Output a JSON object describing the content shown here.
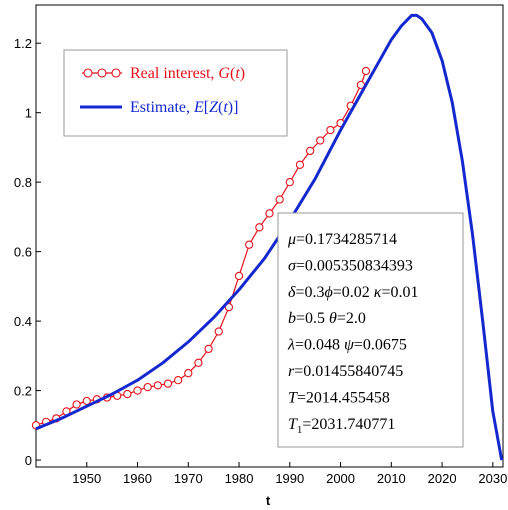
{
  "chart_data": {
    "type": "line",
    "title": "",
    "xlabel": "t",
    "ylabel": "",
    "xlim": [
      1940,
      2032
    ],
    "ylim": [
      -0.02,
      1.31
    ],
    "x_ticks": [
      1950,
      1960,
      1970,
      1980,
      1990,
      2000,
      2010,
      2020,
      2030
    ],
    "x_tick_labels": [
      "1950",
      "1960",
      "1970",
      "1980",
      "1990",
      "2000",
      "2010",
      "2020",
      "2030"
    ],
    "y_ticks": [
      0,
      0.2,
      0.4,
      0.6,
      0.8,
      1,
      1.2
    ],
    "y_tick_labels": [
      "0",
      "0.2",
      "0.4",
      "0.6",
      "0.8",
      "1",
      "1.2"
    ],
    "grid": false,
    "legend_position": "top-left",
    "series": [
      {
        "name": "Real interest, G(t)",
        "legend": {
          "prefix": "Real interest, ",
          "func": "G",
          "arg": "t"
        },
        "color": "#e8111b",
        "marker": "circle",
        "x": [
          1940,
          1942,
          1944,
          1946,
          1948,
          1950,
          1952,
          1954,
          1956,
          1958,
          1960,
          1962,
          1964,
          1966,
          1968,
          1970,
          1972,
          1974,
          1976,
          1978,
          1980,
          1982,
          1984,
          1986,
          1988,
          1990,
          1992,
          1994,
          1996,
          1998,
          2000,
          2002,
          2004,
          2005
        ],
        "y": [
          0.1,
          0.11,
          0.12,
          0.14,
          0.16,
          0.17,
          0.175,
          0.18,
          0.185,
          0.19,
          0.2,
          0.21,
          0.215,
          0.22,
          0.23,
          0.25,
          0.28,
          0.32,
          0.37,
          0.44,
          0.53,
          0.62,
          0.67,
          0.71,
          0.75,
          0.8,
          0.85,
          0.89,
          0.92,
          0.95,
          0.97,
          1.02,
          1.08,
          1.12
        ]
      },
      {
        "name": "Estimate, E[Z(t)]",
        "legend": {
          "prefix": "Estimate, ",
          "func": "E",
          "arg": "Z(t)"
        },
        "color": "#1428d0",
        "marker": "none",
        "x": [
          1940,
          1945,
          1950,
          1955,
          1960,
          1965,
          1970,
          1975,
          1980,
          1985,
          1990,
          1995,
          2000,
          2005,
          2010,
          2012,
          2014,
          2015,
          2016,
          2018,
          2020,
          2022,
          2024,
          2026,
          2028,
          2030,
          2031.74
        ],
        "y": [
          0.09,
          0.12,
          0.155,
          0.19,
          0.23,
          0.28,
          0.34,
          0.41,
          0.49,
          0.58,
          0.69,
          0.81,
          0.95,
          1.08,
          1.21,
          1.25,
          1.28,
          1.28,
          1.27,
          1.23,
          1.15,
          1.03,
          0.86,
          0.65,
          0.4,
          0.14,
          0.0
        ]
      }
    ],
    "annotation": [
      {
        "sym": "μ",
        "text": "=0.1734285714"
      },
      {
        "sym": "σ",
        "text": "=0.005350834393"
      },
      {
        "sym": "δ",
        "text": "=0.3"
      },
      {
        "sym": "ϕ",
        "text": "=0.02 "
      },
      {
        "sym": "κ",
        "text": "=0.01"
      },
      {
        "sym": "b",
        "text": "=0.5 "
      },
      {
        "sym": "θ",
        "text": "=2.0"
      },
      {
        "sym": "λ",
        "text": "=0.048 "
      },
      {
        "sym": "ψ",
        "text": "=0.0675"
      },
      {
        "sym": "r",
        "text": "=0.01455840745"
      },
      {
        "sym": "T",
        "text": "=2014.455458"
      },
      {
        "sym": "T",
        "sub": "1",
        "text": "=2031.740771"
      }
    ]
  }
}
